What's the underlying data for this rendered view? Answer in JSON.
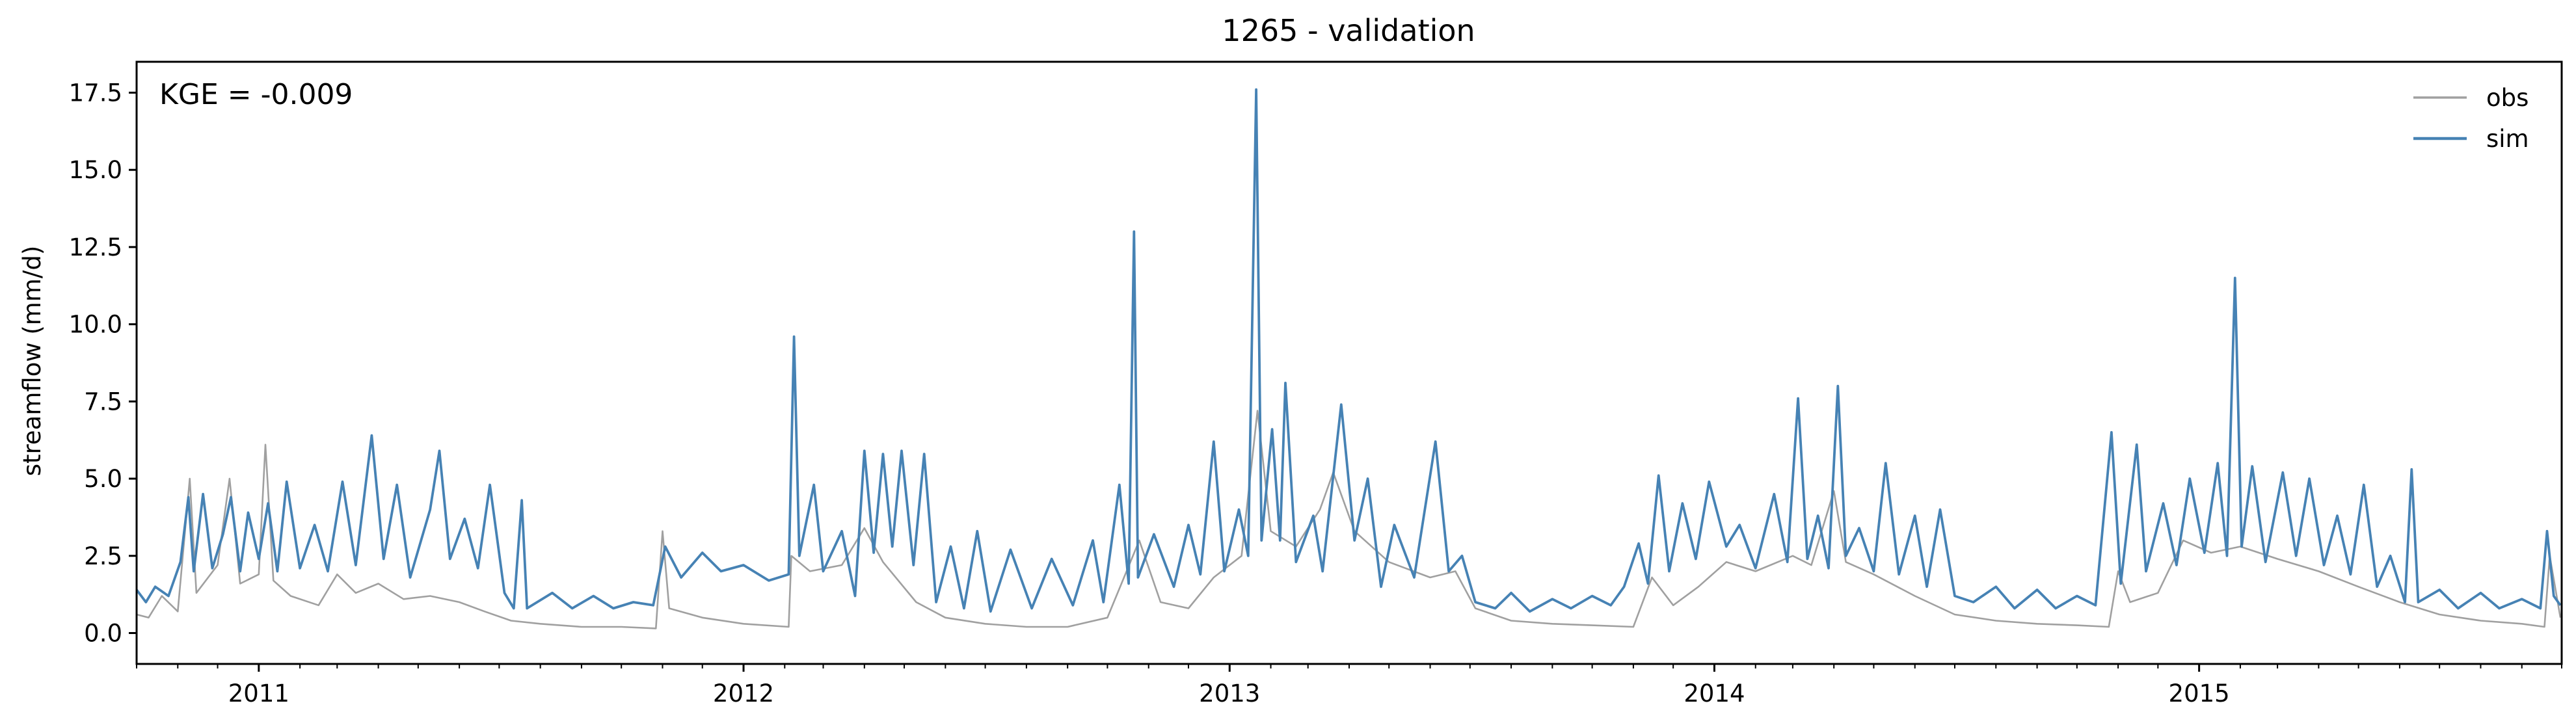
{
  "chart_data": {
    "type": "line",
    "title": "1265 - validation",
    "xlabel": "",
    "ylabel": "streamflow (mm/d)",
    "annotation": "KGE = -0.009",
    "xlim": [
      "2010-10-01",
      "2015-09-30"
    ],
    "ylim": [
      -1.0,
      18.5
    ],
    "y_ticks": [
      0.0,
      2.5,
      5.0,
      7.5,
      10.0,
      12.5,
      15.0,
      17.5
    ],
    "y_tick_labels": [
      "0.0",
      "2.5",
      "5.0",
      "7.5",
      "10.0",
      "12.5",
      "15.0",
      "17.5"
    ],
    "x_ticks": [
      "2011-01-01",
      "2012-01-01",
      "2013-01-01",
      "2014-01-01",
      "2015-01-01"
    ],
    "x_tick_labels": [
      "2011",
      "2012",
      "2013",
      "2014",
      "2015"
    ],
    "x_minor_ticks": "monthly",
    "grid": false,
    "legend_position": "top-right",
    "series": [
      {
        "name": "obs",
        "color": "#a0a0a0",
        "points": [
          [
            "2010-10-01",
            0.6
          ],
          [
            "2010-10-10",
            0.5
          ],
          [
            "2010-10-20",
            1.2
          ],
          [
            "2010-11-01",
            0.7
          ],
          [
            "2010-11-10",
            5.0
          ],
          [
            "2010-11-15",
            1.3
          ],
          [
            "2010-12-01",
            2.2
          ],
          [
            "2010-12-10",
            5.0
          ],
          [
            "2010-12-18",
            1.6
          ],
          [
            "2011-01-01",
            1.9
          ],
          [
            "2011-01-06",
            6.1
          ],
          [
            "2011-01-12",
            1.7
          ],
          [
            "2011-01-25",
            1.2
          ],
          [
            "2011-02-15",
            0.9
          ],
          [
            "2011-03-01",
            1.9
          ],
          [
            "2011-03-15",
            1.3
          ],
          [
            "2011-04-01",
            1.6
          ],
          [
            "2011-04-20",
            1.1
          ],
          [
            "2011-05-10",
            1.2
          ],
          [
            "2011-06-01",
            1.0
          ],
          [
            "2011-06-20",
            0.7
          ],
          [
            "2011-07-10",
            0.4
          ],
          [
            "2011-08-01",
            0.3
          ],
          [
            "2011-09-01",
            0.2
          ],
          [
            "2011-10-01",
            0.2
          ],
          [
            "2011-10-27",
            0.15
          ],
          [
            "2011-11-01",
            3.3
          ],
          [
            "2011-11-06",
            0.8
          ],
          [
            "2011-12-01",
            0.5
          ],
          [
            "2012-01-01",
            0.3
          ],
          [
            "2012-02-04",
            0.2
          ],
          [
            "2012-02-06",
            2.5
          ],
          [
            "2012-02-20",
            2.0
          ],
          [
            "2012-03-15",
            2.2
          ],
          [
            "2012-04-01",
            3.4
          ],
          [
            "2012-04-15",
            2.3
          ],
          [
            "2012-05-10",
            1.0
          ],
          [
            "2012-06-01",
            0.5
          ],
          [
            "2012-07-01",
            0.3
          ],
          [
            "2012-08-01",
            0.2
          ],
          [
            "2012-09-01",
            0.2
          ],
          [
            "2012-10-01",
            0.5
          ],
          [
            "2012-10-25",
            3.0
          ],
          [
            "2012-11-10",
            1.0
          ],
          [
            "2012-12-01",
            0.8
          ],
          [
            "2012-12-20",
            1.8
          ],
          [
            "2013-01-10",
            2.5
          ],
          [
            "2013-01-22",
            7.2
          ],
          [
            "2013-02-01",
            3.3
          ],
          [
            "2013-02-20",
            2.8
          ],
          [
            "2013-03-10",
            4.0
          ],
          [
            "2013-03-20",
            5.2
          ],
          [
            "2013-04-05",
            3.3
          ],
          [
            "2013-05-01",
            2.3
          ],
          [
            "2013-06-01",
            1.8
          ],
          [
            "2013-06-20",
            2.0
          ],
          [
            "2013-07-05",
            0.8
          ],
          [
            "2013-08-01",
            0.4
          ],
          [
            "2013-09-01",
            0.3
          ],
          [
            "2013-10-01",
            0.25
          ],
          [
            "2013-11-01",
            0.2
          ],
          [
            "2013-11-15",
            1.8
          ],
          [
            "2013-12-01",
            0.9
          ],
          [
            "2013-12-20",
            1.5
          ],
          [
            "2014-01-10",
            2.3
          ],
          [
            "2014-02-01",
            2.0
          ],
          [
            "2014-03-01",
            2.5
          ],
          [
            "2014-03-15",
            2.2
          ],
          [
            "2014-04-01",
            4.6
          ],
          [
            "2014-04-10",
            2.3
          ],
          [
            "2014-05-01",
            1.9
          ],
          [
            "2014-06-01",
            1.2
          ],
          [
            "2014-07-01",
            0.6
          ],
          [
            "2014-08-01",
            0.4
          ],
          [
            "2014-09-01",
            0.3
          ],
          [
            "2014-10-01",
            0.25
          ],
          [
            "2014-10-25",
            0.2
          ],
          [
            "2014-11-01",
            2.0
          ],
          [
            "2014-11-10",
            1.0
          ],
          [
            "2014-12-01",
            1.3
          ],
          [
            "2014-12-20",
            3.0
          ],
          [
            "2015-01-10",
            2.6
          ],
          [
            "2015-02-01",
            2.8
          ],
          [
            "2015-03-01",
            2.4
          ],
          [
            "2015-04-01",
            2.0
          ],
          [
            "2015-05-01",
            1.5
          ],
          [
            "2015-06-01",
            1.0
          ],
          [
            "2015-07-01",
            0.6
          ],
          [
            "2015-08-01",
            0.4
          ],
          [
            "2015-09-01",
            0.3
          ],
          [
            "2015-09-18",
            0.2
          ],
          [
            "2015-09-22",
            2.5
          ],
          [
            "2015-09-30",
            0.5
          ]
        ]
      },
      {
        "name": "sim",
        "color": "#4682b4",
        "points": [
          [
            "2010-10-01",
            1.4
          ],
          [
            "2010-10-08",
            1.0
          ],
          [
            "2010-10-15",
            1.5
          ],
          [
            "2010-10-25",
            1.2
          ],
          [
            "2010-11-03",
            2.3
          ],
          [
            "2010-11-09",
            4.4
          ],
          [
            "2010-11-13",
            2.0
          ],
          [
            "2010-11-20",
            4.5
          ],
          [
            "2010-11-27",
            2.1
          ],
          [
            "2010-12-05",
            3.2
          ],
          [
            "2010-12-11",
            4.4
          ],
          [
            "2010-12-18",
            2.0
          ],
          [
            "2010-12-24",
            3.9
          ],
          [
            "2011-01-01",
            2.4
          ],
          [
            "2011-01-08",
            4.2
          ],
          [
            "2011-01-15",
            2.0
          ],
          [
            "2011-01-22",
            4.9
          ],
          [
            "2011-02-01",
            2.1
          ],
          [
            "2011-02-12",
            3.5
          ],
          [
            "2011-02-22",
            2.0
          ],
          [
            "2011-03-05",
            4.9
          ],
          [
            "2011-03-15",
            2.2
          ],
          [
            "2011-03-27",
            6.4
          ],
          [
            "2011-04-05",
            2.4
          ],
          [
            "2011-04-15",
            4.8
          ],
          [
            "2011-04-25",
            1.8
          ],
          [
            "2011-05-10",
            4.0
          ],
          [
            "2011-05-17",
            5.9
          ],
          [
            "2011-05-25",
            2.4
          ],
          [
            "2011-06-05",
            3.7
          ],
          [
            "2011-06-15",
            2.1
          ],
          [
            "2011-06-24",
            4.8
          ],
          [
            "2011-07-05",
            1.3
          ],
          [
            "2011-07-12",
            0.8
          ],
          [
            "2011-07-18",
            4.3
          ],
          [
            "2011-07-22",
            0.8
          ],
          [
            "2011-08-10",
            1.3
          ],
          [
            "2011-08-25",
            0.8
          ],
          [
            "2011-09-10",
            1.2
          ],
          [
            "2011-09-25",
            0.8
          ],
          [
            "2011-10-10",
            1.0
          ],
          [
            "2011-10-25",
            0.9
          ],
          [
            "2011-11-03",
            2.8
          ],
          [
            "2011-11-15",
            1.8
          ],
          [
            "2011-12-01",
            2.6
          ],
          [
            "2011-12-15",
            2.0
          ],
          [
            "2012-01-01",
            2.2
          ],
          [
            "2012-01-20",
            1.7
          ],
          [
            "2012-02-04",
            1.9
          ],
          [
            "2012-02-08",
            9.6
          ],
          [
            "2012-02-12",
            2.5
          ],
          [
            "2012-02-23",
            4.8
          ],
          [
            "2012-03-01",
            2.0
          ],
          [
            "2012-03-15",
            3.3
          ],
          [
            "2012-03-25",
            1.2
          ],
          [
            "2012-04-01",
            5.9
          ],
          [
            "2012-04-08",
            2.6
          ],
          [
            "2012-04-15",
            5.8
          ],
          [
            "2012-04-22",
            2.8
          ],
          [
            "2012-04-29",
            5.9
          ],
          [
            "2012-05-08",
            2.2
          ],
          [
            "2012-05-16",
            5.8
          ],
          [
            "2012-05-25",
            1.0
          ],
          [
            "2012-06-05",
            2.8
          ],
          [
            "2012-06-15",
            0.8
          ],
          [
            "2012-06-25",
            3.3
          ],
          [
            "2012-07-05",
            0.7
          ],
          [
            "2012-07-20",
            2.7
          ],
          [
            "2012-08-05",
            0.8
          ],
          [
            "2012-08-20",
            2.4
          ],
          [
            "2012-09-05",
            0.9
          ],
          [
            "2012-09-20",
            3.0
          ],
          [
            "2012-09-28",
            1.0
          ],
          [
            "2012-10-10",
            4.8
          ],
          [
            "2012-10-17",
            1.6
          ],
          [
            "2012-10-21",
            13.0
          ],
          [
            "2012-10-24",
            1.8
          ],
          [
            "2012-11-05",
            3.2
          ],
          [
            "2012-11-20",
            1.5
          ],
          [
            "2012-12-01",
            3.5
          ],
          [
            "2012-12-10",
            1.9
          ],
          [
            "2012-12-20",
            6.2
          ],
          [
            "2012-12-28",
            2.0
          ],
          [
            "2013-01-08",
            4.0
          ],
          [
            "2013-01-15",
            2.5
          ],
          [
            "2013-01-21",
            17.6
          ],
          [
            "2013-01-25",
            3.0
          ],
          [
            "2013-02-02",
            6.6
          ],
          [
            "2013-02-08",
            3.0
          ],
          [
            "2013-02-12",
            8.1
          ],
          [
            "2013-02-20",
            2.3
          ],
          [
            "2013-03-05",
            3.8
          ],
          [
            "2013-03-12",
            2.0
          ],
          [
            "2013-03-26",
            7.4
          ],
          [
            "2013-04-05",
            3.0
          ],
          [
            "2013-04-15",
            5.0
          ],
          [
            "2013-04-25",
            1.5
          ],
          [
            "2013-05-05",
            3.5
          ],
          [
            "2013-05-20",
            1.8
          ],
          [
            "2013-06-05",
            6.2
          ],
          [
            "2013-06-15",
            2.0
          ],
          [
            "2013-06-25",
            2.5
          ],
          [
            "2013-07-05",
            1.0
          ],
          [
            "2013-07-20",
            0.8
          ],
          [
            "2013-08-01",
            1.3
          ],
          [
            "2013-08-15",
            0.7
          ],
          [
            "2013-09-01",
            1.1
          ],
          [
            "2013-09-15",
            0.8
          ],
          [
            "2013-10-01",
            1.2
          ],
          [
            "2013-10-15",
            0.9
          ],
          [
            "2013-10-25",
            1.5
          ],
          [
            "2013-11-05",
            2.9
          ],
          [
            "2013-11-12",
            1.6
          ],
          [
            "2013-11-20",
            5.1
          ],
          [
            "2013-11-28",
            2.0
          ],
          [
            "2013-12-08",
            4.2
          ],
          [
            "2013-12-18",
            2.4
          ],
          [
            "2013-12-28",
            4.9
          ],
          [
            "2014-01-10",
            2.8
          ],
          [
            "2014-01-20",
            3.5
          ],
          [
            "2014-02-01",
            2.1
          ],
          [
            "2014-02-15",
            4.5
          ],
          [
            "2014-02-25",
            2.3
          ],
          [
            "2014-03-05",
            7.6
          ],
          [
            "2014-03-12",
            2.4
          ],
          [
            "2014-03-20",
            3.8
          ],
          [
            "2014-03-28",
            2.1
          ],
          [
            "2014-04-04",
            8.0
          ],
          [
            "2014-04-10",
            2.5
          ],
          [
            "2014-04-20",
            3.4
          ],
          [
            "2014-05-01",
            2.0
          ],
          [
            "2014-05-10",
            5.5
          ],
          [
            "2014-05-20",
            1.9
          ],
          [
            "2014-06-01",
            3.8
          ],
          [
            "2014-06-10",
            1.5
          ],
          [
            "2014-06-20",
            4.0
          ],
          [
            "2014-07-01",
            1.2
          ],
          [
            "2014-07-15",
            1.0
          ],
          [
            "2014-08-01",
            1.5
          ],
          [
            "2014-08-15",
            0.8
          ],
          [
            "2014-09-01",
            1.4
          ],
          [
            "2014-09-15",
            0.8
          ],
          [
            "2014-10-01",
            1.2
          ],
          [
            "2014-10-15",
            0.9
          ],
          [
            "2014-10-27",
            6.5
          ],
          [
            "2014-11-03",
            1.6
          ],
          [
            "2014-11-15",
            6.1
          ],
          [
            "2014-11-22",
            2.0
          ],
          [
            "2014-12-05",
            4.2
          ],
          [
            "2014-12-15",
            2.2
          ],
          [
            "2014-12-25",
            5.0
          ],
          [
            "2015-01-05",
            2.6
          ],
          [
            "2015-01-15",
            5.5
          ],
          [
            "2015-01-22",
            2.5
          ],
          [
            "2015-01-28",
            11.5
          ],
          [
            "2015-02-02",
            2.8
          ],
          [
            "2015-02-10",
            5.4
          ],
          [
            "2015-02-20",
            2.3
          ],
          [
            "2015-03-05",
            5.2
          ],
          [
            "2015-03-15",
            2.5
          ],
          [
            "2015-03-25",
            5.0
          ],
          [
            "2015-04-05",
            2.2
          ],
          [
            "2015-04-15",
            3.8
          ],
          [
            "2015-04-25",
            1.9
          ],
          [
            "2015-05-05",
            4.8
          ],
          [
            "2015-05-15",
            1.5
          ],
          [
            "2015-05-25",
            2.5
          ],
          [
            "2015-06-05",
            1.0
          ],
          [
            "2015-06-10",
            5.3
          ],
          [
            "2015-06-15",
            1.0
          ],
          [
            "2015-07-01",
            1.4
          ],
          [
            "2015-07-15",
            0.8
          ],
          [
            "2015-08-01",
            1.3
          ],
          [
            "2015-08-15",
            0.8
          ],
          [
            "2015-09-01",
            1.1
          ],
          [
            "2015-09-15",
            0.8
          ],
          [
            "2015-09-20",
            3.3
          ],
          [
            "2015-09-25",
            1.2
          ],
          [
            "2015-09-30",
            0.9
          ]
        ]
      }
    ]
  }
}
